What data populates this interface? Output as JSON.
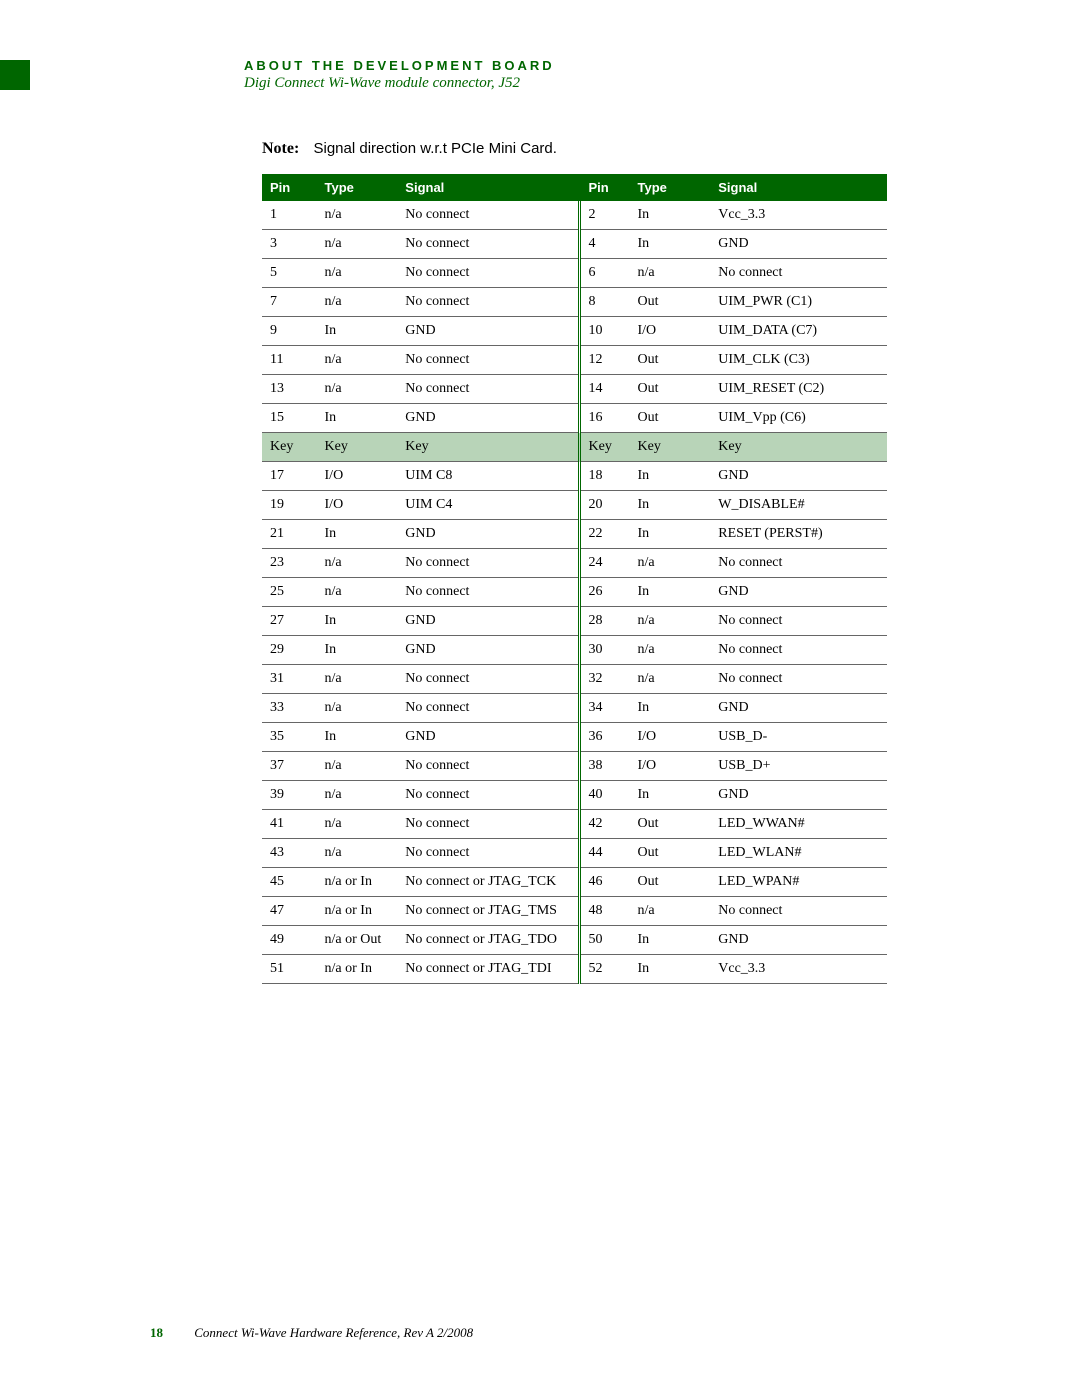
{
  "header": {
    "title": "ABOUT THE DEVELOPMENT BOARD",
    "subtitle": "Digi Connect Wi-Wave module connector, J52"
  },
  "note": {
    "label": "Note:",
    "text": "Signal direction w.r.t PCIe Mini Card."
  },
  "table": {
    "columns": [
      "Pin",
      "Type",
      "Signal",
      "Pin",
      "Type",
      "Signal"
    ],
    "header_bg": "#006600",
    "header_fg": "#ffffff",
    "key_bg": "#b8d4b8",
    "row_border": "#666666",
    "rows": [
      {
        "l": {
          "pin": "1",
          "type": "n/a",
          "signal": "No connect"
        },
        "r": {
          "pin": "2",
          "type": "In",
          "signal": "Vcc_3.3"
        }
      },
      {
        "l": {
          "pin": "3",
          "type": "n/a",
          "signal": "No connect"
        },
        "r": {
          "pin": "4",
          "type": "In",
          "signal": "GND"
        }
      },
      {
        "l": {
          "pin": "5",
          "type": "n/a",
          "signal": "No connect"
        },
        "r": {
          "pin": "6",
          "type": "n/a",
          "signal": "No connect"
        }
      },
      {
        "l": {
          "pin": "7",
          "type": "n/a",
          "signal": "No connect"
        },
        "r": {
          "pin": "8",
          "type": "Out",
          "signal": "UIM_PWR (C1)"
        }
      },
      {
        "l": {
          "pin": "9",
          "type": "In",
          "signal": "GND"
        },
        "r": {
          "pin": "10",
          "type": "I/O",
          "signal": "UIM_DATA (C7)"
        }
      },
      {
        "l": {
          "pin": "11",
          "type": "n/a",
          "signal": "No connect"
        },
        "r": {
          "pin": "12",
          "type": "Out",
          "signal": "UIM_CLK (C3)"
        }
      },
      {
        "l": {
          "pin": "13",
          "type": "n/a",
          "signal": "No connect"
        },
        "r": {
          "pin": "14",
          "type": "Out",
          "signal": "UIM_RESET (C2)"
        }
      },
      {
        "l": {
          "pin": "15",
          "type": "In",
          "signal": "GND"
        },
        "r": {
          "pin": "16",
          "type": "Out",
          "signal": "UIM_Vpp (C6)"
        }
      },
      {
        "key": true,
        "l": {
          "pin": "Key",
          "type": "Key",
          "signal": "Key"
        },
        "r": {
          "pin": "Key",
          "type": "Key",
          "signal": "Key"
        }
      },
      {
        "l": {
          "pin": "17",
          "type": "I/O",
          "signal": "UIM C8"
        },
        "r": {
          "pin": "18",
          "type": "In",
          "signal": "GND"
        }
      },
      {
        "l": {
          "pin": "19",
          "type": "I/O",
          "signal": "UIM C4"
        },
        "r": {
          "pin": "20",
          "type": "In",
          "signal": "W_DISABLE#"
        }
      },
      {
        "l": {
          "pin": "21",
          "type": "In",
          "signal": "GND"
        },
        "r": {
          "pin": "22",
          "type": "In",
          "signal": "RESET (PERST#)"
        }
      },
      {
        "l": {
          "pin": "23",
          "type": "n/a",
          "signal": "No connect"
        },
        "r": {
          "pin": "24",
          "type": "n/a",
          "signal": "No connect"
        }
      },
      {
        "l": {
          "pin": "25",
          "type": "n/a",
          "signal": "No connect"
        },
        "r": {
          "pin": "26",
          "type": "In",
          "signal": "GND"
        }
      },
      {
        "l": {
          "pin": "27",
          "type": "In",
          "signal": "GND"
        },
        "r": {
          "pin": "28",
          "type": "n/a",
          "signal": "No connect"
        }
      },
      {
        "l": {
          "pin": "29",
          "type": "In",
          "signal": "GND"
        },
        "r": {
          "pin": "30",
          "type": "n/a",
          "signal": "No connect"
        }
      },
      {
        "l": {
          "pin": "31",
          "type": "n/a",
          "signal": "No connect"
        },
        "r": {
          "pin": "32",
          "type": "n/a",
          "signal": "No connect"
        }
      },
      {
        "l": {
          "pin": "33",
          "type": "n/a",
          "signal": "No connect"
        },
        "r": {
          "pin": "34",
          "type": "In",
          "signal": "GND"
        }
      },
      {
        "l": {
          "pin": "35",
          "type": "In",
          "signal": "GND"
        },
        "r": {
          "pin": "36",
          "type": "I/O",
          "signal": "USB_D-"
        }
      },
      {
        "l": {
          "pin": "37",
          "type": "n/a",
          "signal": "No connect"
        },
        "r": {
          "pin": "38",
          "type": "I/O",
          "signal": "USB_D+"
        }
      },
      {
        "l": {
          "pin": "39",
          "type": "n/a",
          "signal": "No connect"
        },
        "r": {
          "pin": "40",
          "type": "In",
          "signal": "GND"
        }
      },
      {
        "l": {
          "pin": "41",
          "type": "n/a",
          "signal": "No connect"
        },
        "r": {
          "pin": "42",
          "type": "Out",
          "signal": "LED_WWAN#"
        }
      },
      {
        "l": {
          "pin": "43",
          "type": "n/a",
          "signal": "No connect"
        },
        "r": {
          "pin": "44",
          "type": "Out",
          "signal": "LED_WLAN#"
        }
      },
      {
        "l": {
          "pin": "45",
          "type": "n/a or In",
          "signal": "No connect or JTAG_TCK"
        },
        "r": {
          "pin": "46",
          "type": "Out",
          "signal": "LED_WPAN#"
        }
      },
      {
        "l": {
          "pin": "47",
          "type": "n/a or In",
          "signal": "No connect or JTAG_TMS"
        },
        "r": {
          "pin": "48",
          "type": "n/a",
          "signal": "No connect"
        }
      },
      {
        "l": {
          "pin": "49",
          "type": "n/a or Out",
          "signal": "No connect or JTAG_TDO"
        },
        "r": {
          "pin": "50",
          "type": "In",
          "signal": "GND"
        }
      },
      {
        "l": {
          "pin": "51",
          "type": "n/a or In",
          "signal": "No connect or JTAG_TDI"
        },
        "r": {
          "pin": "52",
          "type": "In",
          "signal": "Vcc_3.3"
        }
      }
    ]
  },
  "footer": {
    "page_number": "18",
    "text": "Connect Wi-Wave Hardware Reference, Rev A  2/2008"
  }
}
